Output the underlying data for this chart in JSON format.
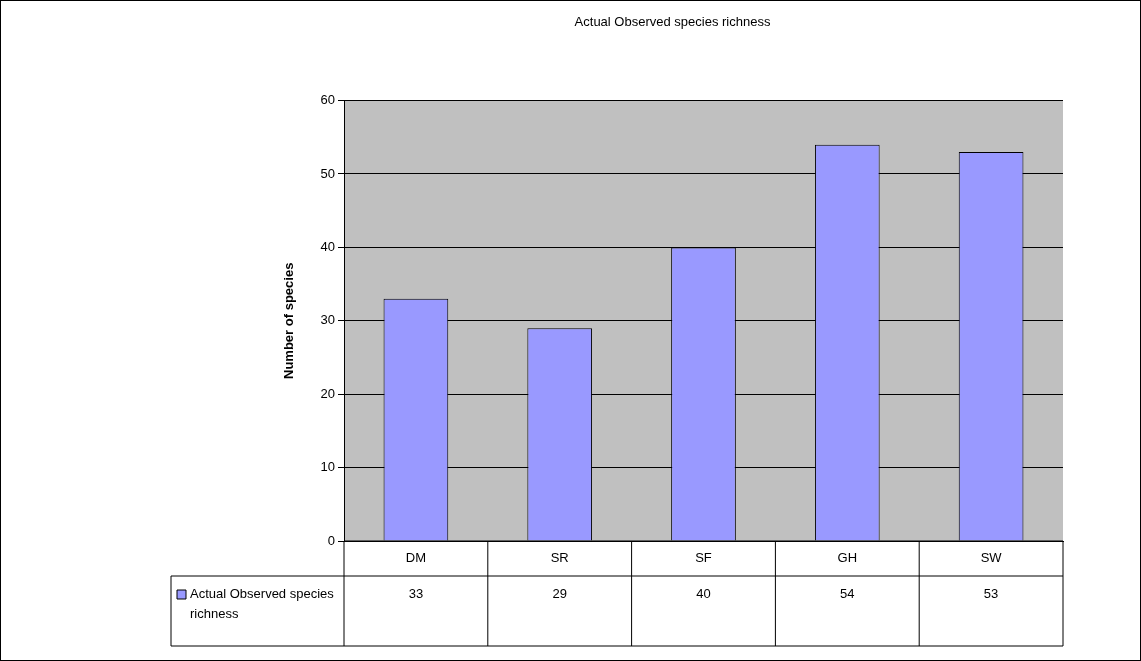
{
  "chart_data": {
    "type": "bar",
    "title": "Actual Observed species richness",
    "ylabel": "Number of species",
    "categories": [
      "DM",
      "SR",
      "SF",
      "GH",
      "SW"
    ],
    "series": [
      {
        "name": "Actual Observed species richness",
        "color": "#9999ff",
        "values": [
          33,
          29,
          40,
          54,
          53
        ]
      }
    ],
    "ylim": [
      0,
      60
    ],
    "yticks": [
      0,
      10,
      20,
      30,
      40,
      50,
      60
    ],
    "grid": "y",
    "legend": "bottom",
    "data_labels": true
  }
}
